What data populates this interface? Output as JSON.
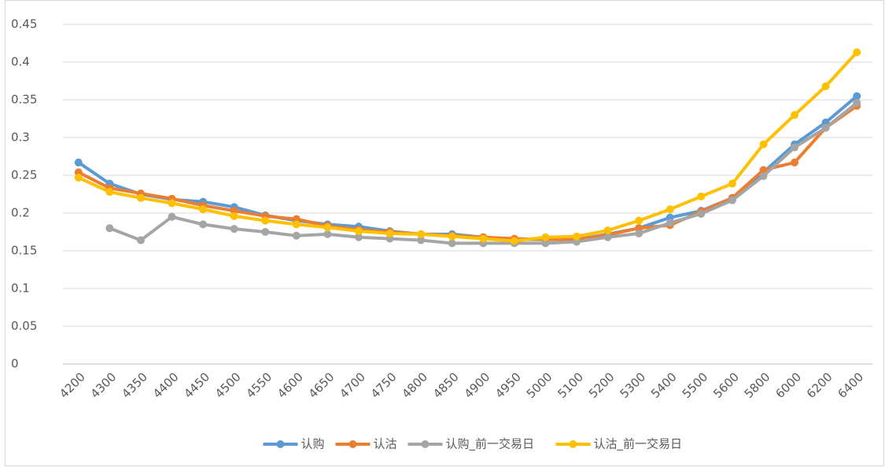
{
  "chart_data": {
    "type": "line",
    "categories": [
      "4200",
      "4300",
      "4350",
      "4400",
      "4450",
      "4500",
      "4550",
      "4600",
      "4650",
      "4700",
      "4750",
      "4800",
      "4850",
      "4900",
      "4950",
      "5000",
      "5100",
      "5200",
      "5300",
      "5400",
      "5500",
      "5600",
      "5800",
      "6000",
      "6200",
      "6400"
    ],
    "series": [
      {
        "name": "认购",
        "color": "#5b9bd5",
        "values": [
          0.267,
          0.239,
          0.225,
          0.218,
          0.215,
          0.208,
          0.197,
          0.19,
          0.185,
          0.182,
          0.176,
          0.172,
          0.172,
          0.168,
          0.165,
          0.165,
          0.165,
          0.172,
          0.18,
          0.194,
          0.203,
          0.22,
          0.254,
          0.291,
          0.32,
          0.355
        ]
      },
      {
        "name": "认沽",
        "color": "#ed7d31",
        "values": [
          0.254,
          0.233,
          0.226,
          0.219,
          0.21,
          0.203,
          0.196,
          0.192,
          0.183,
          0.178,
          0.175,
          0.172,
          0.17,
          0.168,
          0.166,
          0.165,
          0.165,
          0.171,
          0.18,
          0.184,
          0.202,
          0.22,
          0.257,
          0.267,
          0.313,
          0.342
        ]
      },
      {
        "name": "认购_前一交易日",
        "color": "#a5a5a5",
        "values": [
          null,
          0.18,
          0.164,
          0.195,
          0.185,
          0.179,
          0.175,
          0.17,
          0.172,
          0.168,
          0.166,
          0.164,
          0.16,
          0.16,
          0.16,
          0.16,
          0.162,
          0.168,
          0.173,
          0.187,
          0.199,
          0.217,
          0.249,
          0.287,
          0.313,
          0.346
        ]
      },
      {
        "name": "认沽_前一交易日",
        "color": "#ffc000",
        "values": [
          0.247,
          0.228,
          0.22,
          0.213,
          0.205,
          0.196,
          0.19,
          0.185,
          0.181,
          0.176,
          0.173,
          0.172,
          0.169,
          0.166,
          0.163,
          0.168,
          0.169,
          0.177,
          0.19,
          0.205,
          0.222,
          0.239,
          0.291,
          0.33,
          0.368,
          0.413
        ]
      }
    ],
    "ylim": [
      0,
      0.45
    ],
    "yticks": [
      0,
      0.05,
      0.1,
      0.15,
      0.2,
      0.25,
      0.3,
      0.35,
      0.4,
      0.45
    ],
    "grid": true,
    "legend": "bottom"
  }
}
